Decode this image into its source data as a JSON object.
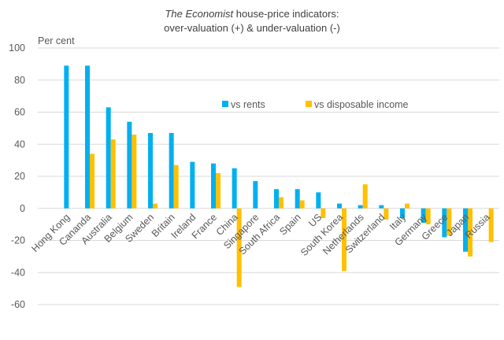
{
  "chart_data": {
    "type": "bar",
    "title_italic": "The Economist",
    "title_rest": " house-price indicators:",
    "subtitle": "over-valuation (+) & under-valuation (-)",
    "ylabel": "Per cent",
    "ylim": [
      -60,
      100
    ],
    "yticks": [
      100,
      80,
      60,
      40,
      20,
      0,
      -20,
      -40,
      -60
    ],
    "grid": true,
    "legend_position": "center-right",
    "categories": [
      "Hong Kong",
      "Cananda",
      "Australia",
      "Belgium",
      "Sweden",
      "Britain",
      "Ireland",
      "France",
      "China",
      "Singapore",
      "South Africa",
      "Spain",
      "US",
      "South Korea",
      "Netherlands",
      "Switzerland",
      "Italy",
      "Germany",
      "Greece",
      "Japan",
      "Russia"
    ],
    "series": [
      {
        "name": "vs rents",
        "color": "#00B0F0",
        "values": [
          89,
          89,
          63,
          54,
          47,
          47,
          29,
          28,
          25,
          17,
          12,
          12,
          10,
          3,
          2,
          2,
          -6,
          -9,
          -18,
          -27,
          null
        ]
      },
      {
        "name": "vs disposable income",
        "color": "#FFC000",
        "values": [
          null,
          34,
          43,
          46,
          3,
          27,
          null,
          22,
          -49,
          null,
          7,
          5,
          -6,
          -39,
          15,
          -7,
          3,
          -10,
          -17,
          -30,
          -21
        ]
      }
    ]
  }
}
